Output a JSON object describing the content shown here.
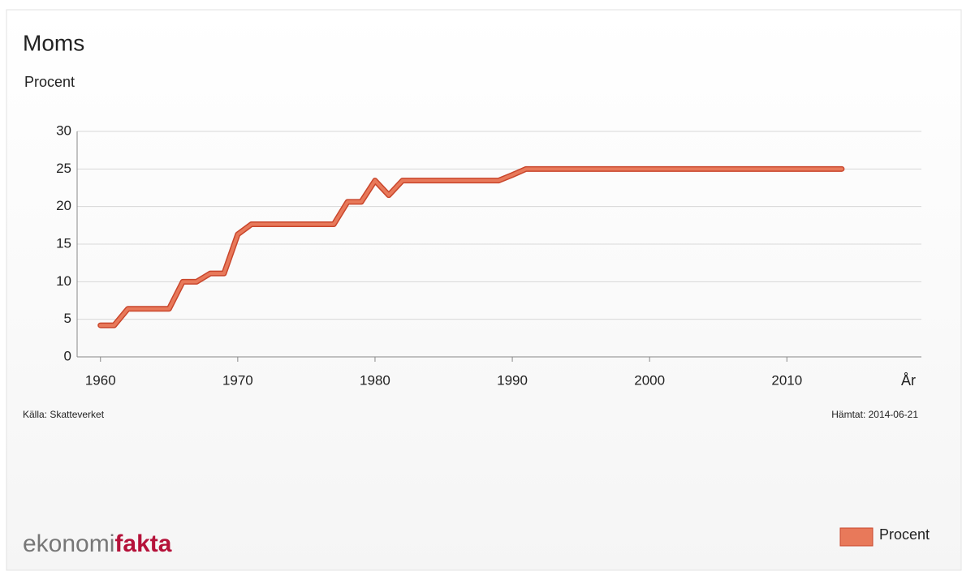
{
  "chart_data": {
    "type": "line",
    "title": "Moms",
    "ylabel": "Procent",
    "xlabel": "År",
    "source": "Källa: Skatteverket",
    "retrieved": "Hämtat: 2014-06-21",
    "logo": [
      "ekonomi",
      "fakta"
    ],
    "x": [
      1960,
      1961,
      1962,
      1963,
      1964,
      1965,
      1966,
      1967,
      1968,
      1969,
      1970,
      1971,
      1972,
      1973,
      1974,
      1975,
      1976,
      1977,
      1978,
      1979,
      1980,
      1981,
      1982,
      1983,
      1984,
      1985,
      1986,
      1987,
      1988,
      1989,
      1990,
      1991,
      1992,
      1993,
      1994,
      1995,
      1996,
      1997,
      1998,
      1999,
      2000,
      2001,
      2002,
      2003,
      2004,
      2005,
      2006,
      2007,
      2008,
      2009,
      2010,
      2011,
      2012,
      2013,
      2014
    ],
    "series": [
      {
        "name": "Procent",
        "color": "#e8795a",
        "values": [
          4.2,
          4.2,
          6.4,
          6.4,
          6.4,
          6.4,
          10,
          10,
          11.1,
          11.1,
          16.3,
          17.65,
          17.65,
          17.65,
          17.65,
          17.65,
          17.65,
          17.65,
          20.63,
          20.63,
          23.46,
          21.51,
          23.46,
          23.46,
          23.46,
          23.46,
          23.46,
          23.46,
          23.46,
          23.46,
          24.2,
          25,
          25,
          25,
          25,
          25,
          25,
          25,
          25,
          25,
          25,
          25,
          25,
          25,
          25,
          25,
          25,
          25,
          25,
          25,
          25,
          25,
          25,
          25,
          25
        ]
      }
    ],
    "xlim": [
      1958.3,
      2019.8
    ],
    "xticks": [
      1960,
      1970,
      1980,
      1990,
      2000,
      2010
    ],
    "ylim": [
      0,
      30
    ],
    "yticks": [
      0,
      5,
      10,
      15,
      20,
      25,
      30
    ],
    "grid": true,
    "legend": "bottom-right"
  }
}
